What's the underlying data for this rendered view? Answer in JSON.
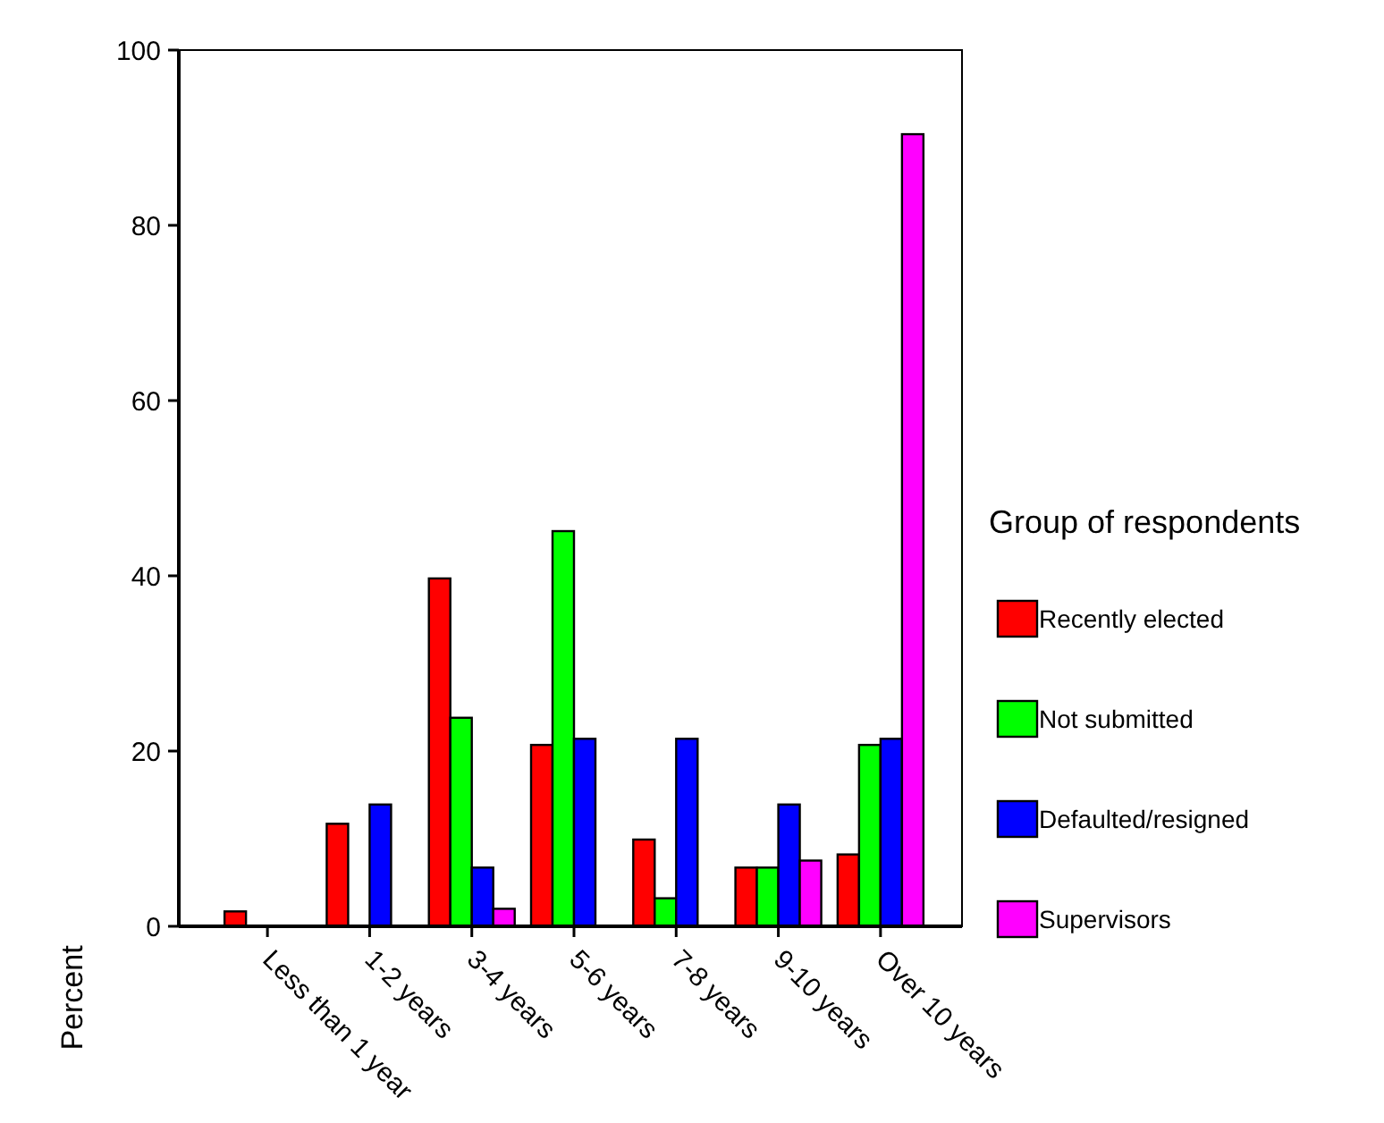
{
  "chart_data": {
    "type": "bar",
    "ylabel": "Percent",
    "legend_title": "Group of respondents",
    "legend": "right",
    "grid": false,
    "categories": [
      "Less than 1 year",
      "1-2 years",
      "3-4 years",
      "5-6 years",
      "7-8 years",
      "9-10 years",
      "Over 10 years"
    ],
    "ylim": [
      0,
      100
    ],
    "yticks": [
      0,
      20,
      40,
      60,
      80,
      100
    ],
    "series": [
      {
        "name": "Recently elected",
        "color": "#ff0000",
        "values": [
          1.7,
          11.7,
          39.7,
          20.7,
          9.9,
          6.7,
          8.2
        ]
      },
      {
        "name": "Not submitted",
        "color": "#00ff00",
        "values": [
          0,
          0,
          23.8,
          45.1,
          3.2,
          6.7,
          20.7
        ]
      },
      {
        "name": "Defaulted/resigned",
        "color": "#0000ff",
        "values": [
          0,
          13.9,
          6.7,
          21.4,
          21.4,
          13.9,
          21.4
        ]
      },
      {
        "name": "Supervisors",
        "color": "#ff00ff",
        "values": [
          0,
          0,
          2,
          0,
          0,
          7.5,
          90.4
        ]
      }
    ]
  }
}
